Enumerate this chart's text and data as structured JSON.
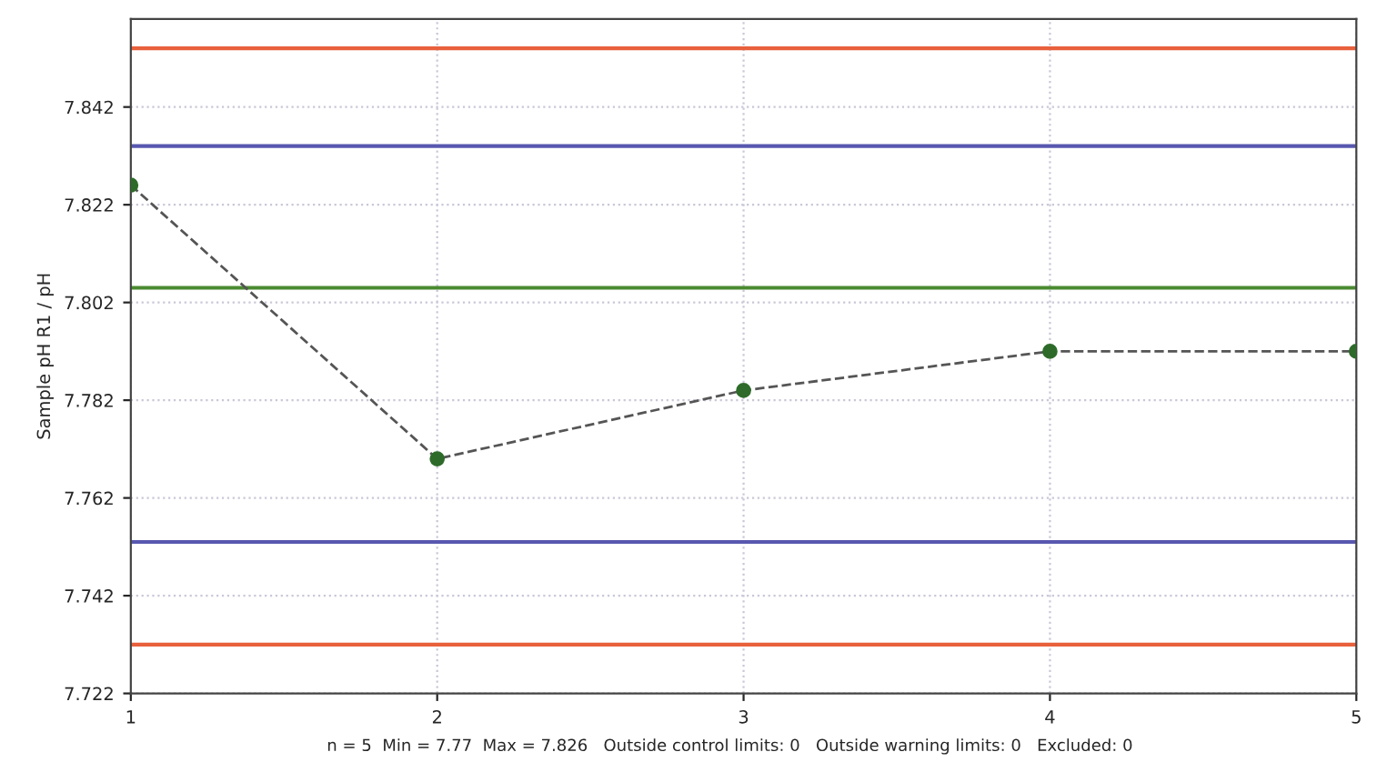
{
  "chart_data": {
    "type": "line",
    "ylabel": "Sample pH R1 / pH",
    "x": [
      1,
      2,
      3,
      4,
      5
    ],
    "series": [
      {
        "color": "#2e6b2a",
        "values": [
          7.826,
          7.77,
          7.784,
          7.792,
          7.792
        ]
      }
    ],
    "xlim": [
      1,
      5
    ],
    "xticks": [
      1,
      2,
      3,
      4,
      5
    ],
    "ylim": [
      7.722,
      7.86
    ],
    "yticks": [
      7.722,
      7.742,
      7.762,
      7.782,
      7.802,
      7.822,
      7.842
    ],
    "grid": true,
    "marker": "circle",
    "line_style": "dashed",
    "ref_lines": [
      {
        "axis": "y",
        "value": 7.854,
        "color": "#e8603c"
      },
      {
        "axis": "y",
        "value": 7.834,
        "color": "#5858b0"
      },
      {
        "axis": "y",
        "value": 7.805,
        "color": "#4a8a30"
      },
      {
        "axis": "y",
        "value": 7.753,
        "color": "#5858b0"
      },
      {
        "axis": "y",
        "value": 7.732,
        "color": "#e8603c"
      }
    ],
    "annotations": [
      "n = 5  Min = 7.77  Max = 7.826   Outside control limits: 0   Outside warning limits: 0   Excluded: 0"
    ]
  }
}
